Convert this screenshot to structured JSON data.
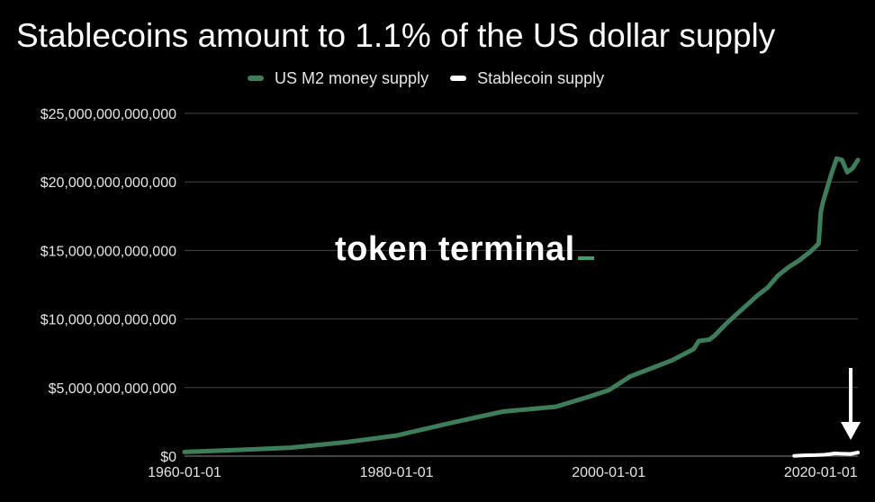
{
  "chart_data": {
    "type": "line",
    "title": "Stablecoins amount to 1.1% of the US dollar supply",
    "xlabel": "",
    "ylabel": "",
    "legend_position": "top",
    "grid": true,
    "xlim": [
      1960,
      2023.5
    ],
    "ylim": [
      0,
      25000000000000
    ],
    "x_ticks": [
      "1960-01-01",
      "1980-01-01",
      "2000-01-01",
      "2020-01-01"
    ],
    "y_ticks": [
      "$0",
      "$5,000,000,000,000",
      "$10,000,000,000,000",
      "$15,000,000,000,000",
      "$20,000,000,000,000",
      "$25,000,000,000,000"
    ],
    "y_tick_values": [
      0,
      5000000000000,
      10000000000000,
      15000000000000,
      20000000000000,
      25000000000000
    ],
    "series": [
      {
        "name": "US M2 money supply",
        "color": "#3d7d5a",
        "x": [
          1960,
          1965,
          1970,
          1975,
          1980,
          1985,
          1990,
          1995,
          1998,
          2000,
          2002,
          2004,
          2006,
          2008,
          2008.5,
          2009.5,
          2010,
          2011,
          2012,
          2013,
          2014,
          2015,
          2016,
          2017,
          2018,
          2019,
          2019.8,
          2020,
          2020.2,
          2020.5,
          2021,
          2021.5,
          2022,
          2022.5,
          2023,
          2023.5
        ],
        "values": [
          300000000000,
          450000000000,
          620000000000,
          1000000000000,
          1500000000000,
          2400000000000,
          3250000000000,
          3600000000000,
          4300000000000,
          4800000000000,
          5800000000000,
          6400000000000,
          7000000000000,
          7800000000000,
          8400000000000,
          8500000000000,
          8800000000000,
          9600000000000,
          10300000000000,
          11000000000000,
          11700000000000,
          12300000000000,
          13200000000000,
          13800000000000,
          14300000000000,
          14900000000000,
          15500000000000,
          17800000000000,
          18500000000000,
          19300000000000,
          20600000000000,
          21700000000000,
          21600000000000,
          20700000000000,
          21000000000000,
          21600000000000
        ]
      },
      {
        "name": "Stablecoin supply",
        "color": "#ffffff",
        "x": [
          2017.5,
          2018.5,
          2019.5,
          2020.3,
          2020.8,
          2021.3,
          2021.8,
          2022.3,
          2022.8,
          2023.3,
          2023.5
        ],
        "values": [
          20000000000,
          60000000000,
          70000000000,
          100000000000,
          140000000000,
          200000000000,
          180000000000,
          170000000000,
          160000000000,
          230000000000,
          260000000000
        ]
      }
    ],
    "annotations": [
      {
        "type": "arrow",
        "color": "#ffffff",
        "points_to": "Stablecoin supply"
      }
    ]
  },
  "watermark": "token terminal",
  "watermark_accent_color": "#3d9f6a"
}
